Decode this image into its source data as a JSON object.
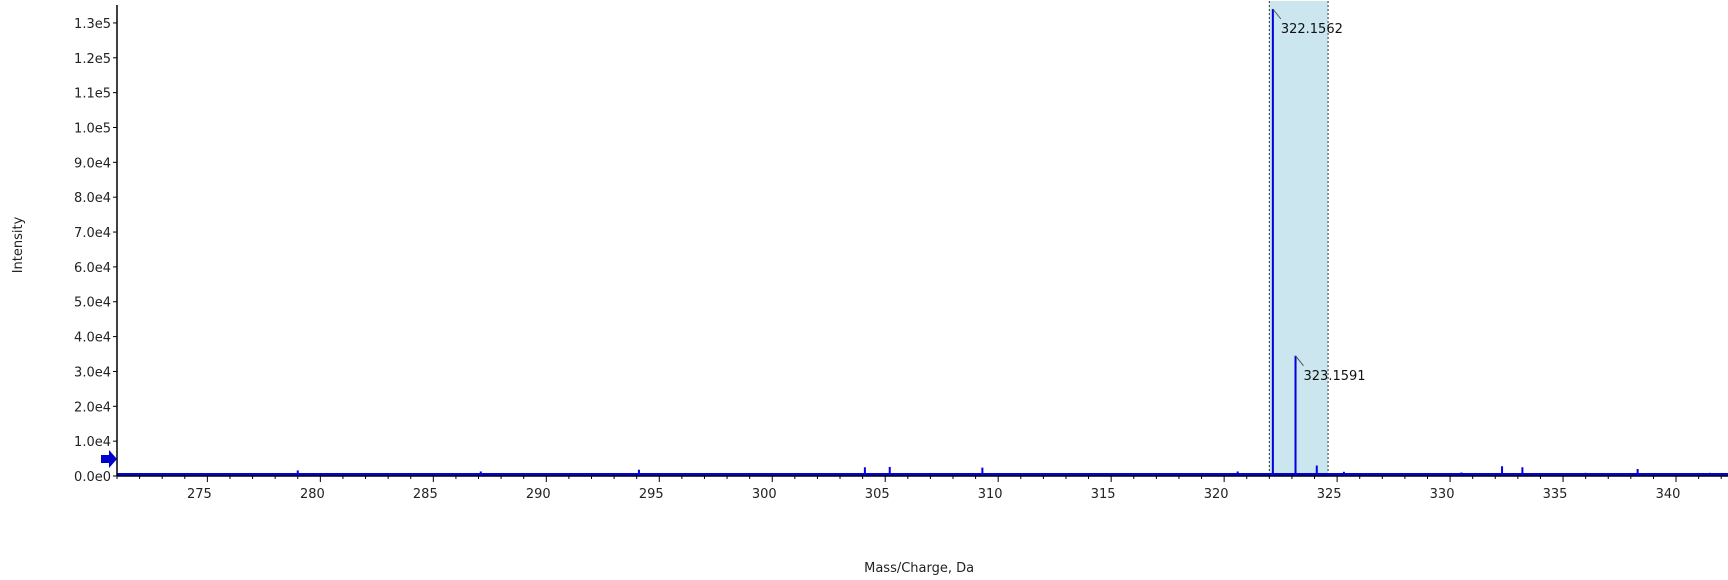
{
  "chart_data": {
    "type": "bar",
    "xlabel": "Mass/Charge, Da",
    "ylabel": "Intensity",
    "xlim": [
      271,
      342.3
    ],
    "ylim": [
      0,
      134000
    ],
    "x_ticks": [
      275,
      280,
      285,
      290,
      295,
      300,
      305,
      310,
      315,
      320,
      325,
      330,
      335,
      340
    ],
    "y_ticks": [
      {
        "value": 0,
        "label": "0.0e0"
      },
      {
        "value": 10000,
        "label": "1.0e4"
      },
      {
        "value": 20000,
        "label": "2.0e4"
      },
      {
        "value": 30000,
        "label": "3.0e4"
      },
      {
        "value": 40000,
        "label": "4.0e4"
      },
      {
        "value": 50000,
        "label": "5.0e4"
      },
      {
        "value": 60000,
        "label": "6.0e4"
      },
      {
        "value": 70000,
        "label": "7.0e4"
      },
      {
        "value": 80000,
        "label": "8.0e4"
      },
      {
        "value": 90000,
        "label": "9.0e4"
      },
      {
        "value": 100000,
        "label": "1.0e5"
      },
      {
        "value": 110000,
        "label": "1.1e5"
      },
      {
        "value": 120000,
        "label": "1.2e5"
      },
      {
        "value": 130000,
        "label": "1.3e5"
      }
    ],
    "highlight_range": [
      322.0,
      324.6
    ],
    "series": [
      {
        "x": [
          272.8,
          274.6,
          276.3,
          278.0,
          279.0,
          280.5,
          283.0,
          285.2,
          287.1,
          289.3,
          291.6,
          293.4,
          294.1,
          296.0,
          298.7,
          301.3,
          303.3,
          304.1,
          305.2,
          307.0,
          308.5,
          309.3,
          311.0,
          312.6,
          314.2,
          315.0,
          317.0,
          318.9,
          320.6,
          322.1562,
          323.1591,
          324.1,
          325.3,
          327.0,
          328.8,
          330.5,
          332.3,
          333.2,
          334.5,
          336.0,
          338.3,
          340.0,
          341.5
        ],
        "y": [
          700,
          500,
          700,
          500,
          1600,
          600,
          700,
          600,
          1300,
          700,
          600,
          500,
          1800,
          600,
          700,
          800,
          600,
          2500,
          2600,
          600,
          800,
          2400,
          600,
          700,
          600,
          800,
          600,
          700,
          1300,
          134000,
          34500,
          3000,
          1200,
          700,
          800,
          1000,
          2800,
          2500,
          800,
          900,
          2000,
          800,
          900
        ]
      }
    ],
    "peak_labels": [
      {
        "x": 322.1562,
        "y": 134000,
        "label": "322.1562"
      },
      {
        "x": 323.1591,
        "y": 34500,
        "label": "323.1591"
      }
    ],
    "colors": {
      "bars": "#0000e0",
      "highlight": "#cbe6ee",
      "axis": "#000000",
      "marker": "#0000cc"
    }
  }
}
